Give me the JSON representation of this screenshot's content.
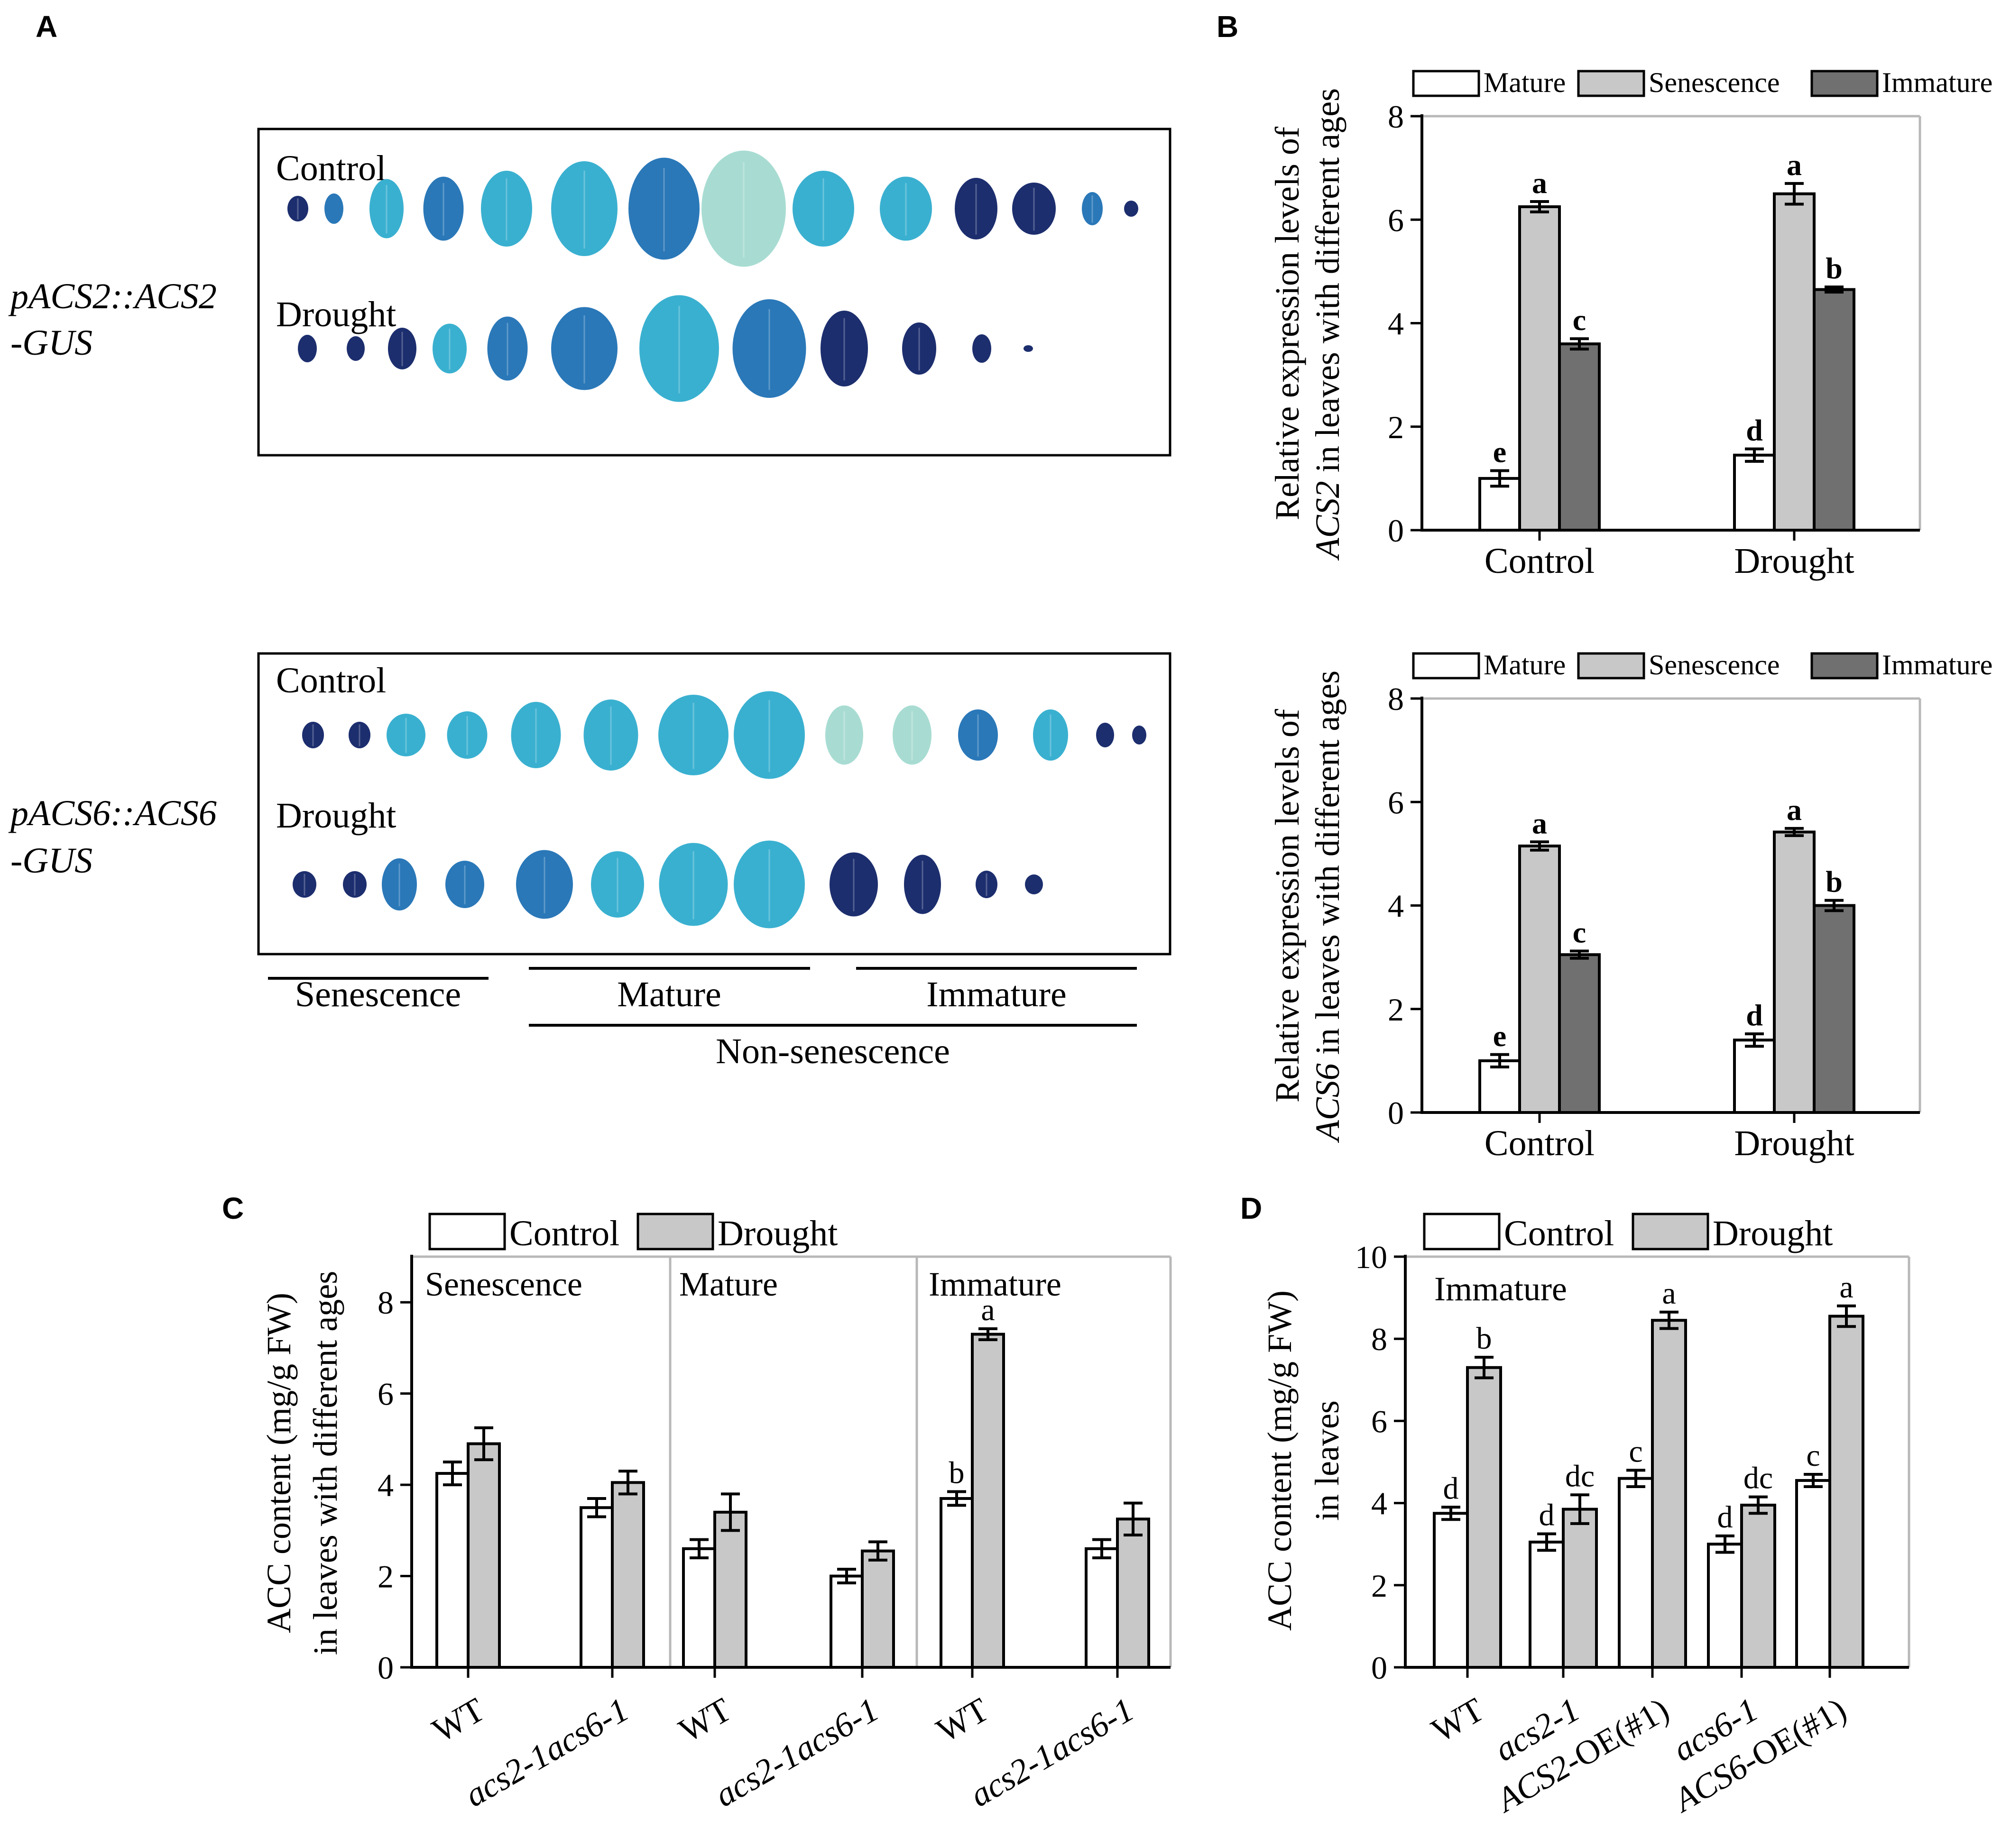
{
  "panels": {
    "A": {
      "letter": "A",
      "top_construct": "pACS2::ACS2",
      "top_construct_suffix": "-GUS",
      "bottom_construct": "pACS6::ACS6",
      "bottom_construct_suffix": "-GUS",
      "control_label": "Control",
      "drought_label": "Drought",
      "age_groups": {
        "senescence": "Senescence",
        "mature": "Mature",
        "immature": "Immature",
        "non_senescence": "Non-senescence"
      },
      "leaf_colors": {
        "dark": "#1c2e6e",
        "mid": "#2a78b8",
        "light": "#3ab0d0",
        "pale": "#a8dcd2"
      }
    },
    "B": {
      "letter": "B"
    },
    "C": {
      "letter": "C"
    },
    "D": {
      "letter": "D"
    }
  },
  "colors": {
    "white_bar": "#ffffff",
    "light_bar": "#c8c8c8",
    "dark_bar": "#707070",
    "axis": "#000000",
    "frame": "#b8b8b8"
  },
  "chart_data": [
    {
      "id": "B-ACS2",
      "type": "bar",
      "legend": [
        "Mature",
        "Senescence",
        "Immature"
      ],
      "categories": [
        "Control",
        "Drought"
      ],
      "series": [
        {
          "name": "Mature",
          "values": [
            1.0,
            1.45
          ],
          "errors": [
            0.15,
            0.12
          ],
          "letters": [
            "e",
            "d"
          ]
        },
        {
          "name": "Senescence",
          "values": [
            6.25,
            6.5
          ],
          "errors": [
            0.1,
            0.2
          ],
          "letters": [
            "a",
            "a"
          ]
        },
        {
          "name": "Immature",
          "values": [
            3.6,
            4.65
          ],
          "errors": [
            0.1,
            0.05
          ],
          "letters": [
            "c",
            "b"
          ]
        }
      ],
      "ylabel_line1": "Relative expression levels of",
      "ylabel_gene": "ACS2",
      "ylabel_rest": " in leaves with different ages",
      "ylim": [
        0,
        8
      ],
      "yticks": [
        "0",
        "2",
        "4",
        "6",
        "8"
      ]
    },
    {
      "id": "B-ACS6",
      "type": "bar",
      "legend": [
        "Mature",
        "Senescence",
        "Immature"
      ],
      "categories": [
        "Control",
        "Drought"
      ],
      "series": [
        {
          "name": "Mature",
          "values": [
            1.0,
            1.4
          ],
          "errors": [
            0.12,
            0.12
          ],
          "letters": [
            "e",
            "d"
          ]
        },
        {
          "name": "Senescence",
          "values": [
            5.15,
            5.42
          ],
          "errors": [
            0.08,
            0.07
          ],
          "letters": [
            "a",
            "a"
          ]
        },
        {
          "name": "Immature",
          "values": [
            3.05,
            4.0
          ],
          "errors": [
            0.07,
            0.1
          ],
          "letters": [
            "c",
            "b"
          ]
        }
      ],
      "ylabel_line1": "Relative expression levels of",
      "ylabel_gene": "ACS6",
      "ylabel_rest": " in leaves with different ages",
      "ylim": [
        0,
        8
      ],
      "yticks": [
        "0",
        "2",
        "4",
        "6",
        "8"
      ]
    },
    {
      "id": "C",
      "type": "bar",
      "legend": [
        "Control",
        "Drought"
      ],
      "groups": [
        "Senescence",
        "Mature",
        "Immature"
      ],
      "categories": [
        "WT",
        "acs2-1acs6-1",
        "WT",
        "acs2-1acs6-1",
        "WT",
        "acs2-1acs6-1"
      ],
      "series": [
        {
          "name": "Control",
          "values": [
            4.25,
            3.5,
            2.6,
            2.0,
            3.7,
            2.6
          ],
          "errors": [
            0.25,
            0.2,
            0.2,
            0.15,
            0.15,
            0.2
          ],
          "letters": [
            "",
            "",
            "",
            "",
            "b",
            ""
          ]
        },
        {
          "name": "Drought",
          "values": [
            4.9,
            4.05,
            3.4,
            2.55,
            7.3,
            3.25
          ],
          "errors": [
            0.35,
            0.25,
            0.4,
            0.2,
            0.12,
            0.35
          ],
          "letters": [
            "",
            "",
            "",
            "",
            "a",
            ""
          ]
        }
      ],
      "ylabel_line1": "ACC content (mg/g FW)",
      "ylabel_line2": "in leaves with different ages",
      "ylim": [
        0,
        9
      ],
      "yticks": [
        "0",
        "2",
        "4",
        "6",
        "8"
      ]
    },
    {
      "id": "D",
      "type": "bar",
      "legend": [
        "Control",
        "Drought"
      ],
      "inner_label": "Immature",
      "categories": [
        "WT",
        "acs2-1",
        "ACS2-OE(#1)",
        "acs6-1",
        "ACS6-OE(#1)"
      ],
      "series": [
        {
          "name": "Control",
          "values": [
            3.75,
            3.05,
            4.6,
            3.0,
            4.55
          ],
          "errors": [
            0.15,
            0.2,
            0.2,
            0.2,
            0.15
          ],
          "letters": [
            "d",
            "d",
            "c",
            "d",
            "c"
          ]
        },
        {
          "name": "Drought",
          "values": [
            7.3,
            3.85,
            8.45,
            3.95,
            8.55
          ],
          "errors": [
            0.25,
            0.35,
            0.2,
            0.2,
            0.25
          ],
          "letters": [
            "b",
            "dc",
            "a",
            "dc",
            "a"
          ]
        }
      ],
      "ylabel_line1": "ACC content (mg/g FW)",
      "ylabel_line2": "in leaves",
      "ylim": [
        0,
        10
      ],
      "yticks": [
        "0",
        "2",
        "4",
        "6",
        "8",
        "10"
      ]
    }
  ]
}
